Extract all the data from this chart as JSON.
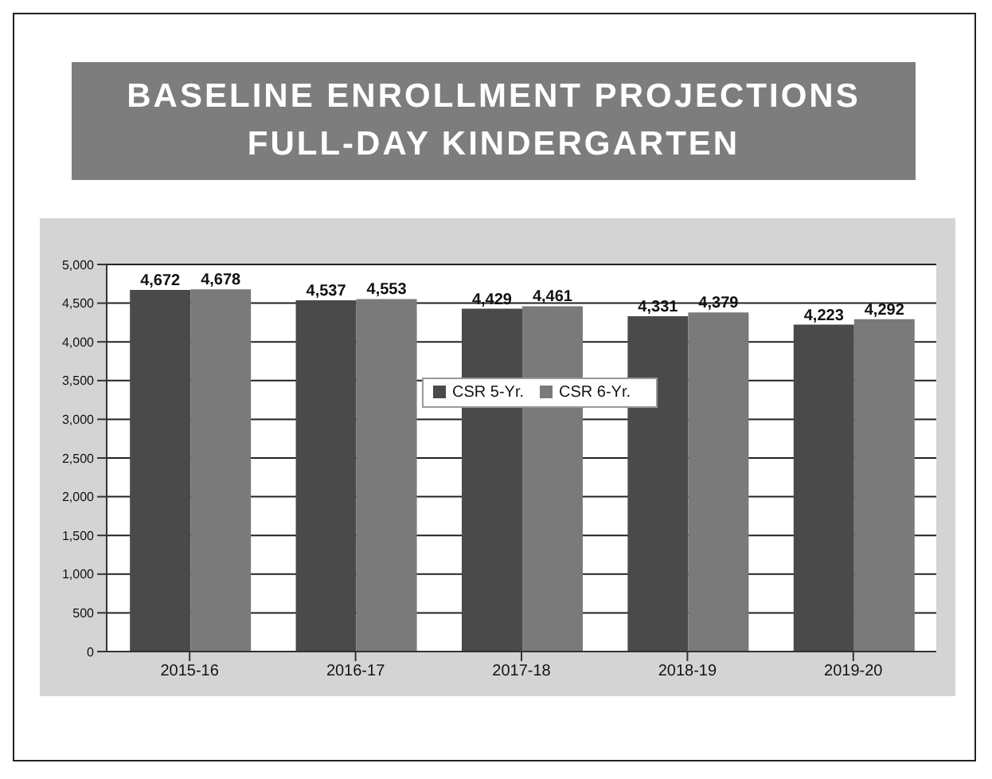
{
  "chart_data": {
    "type": "bar",
    "title": "BASELINE ENROLLMENT PROJECTIONS\nFULL-DAY KINDERGARTEN",
    "categories": [
      "2015-16",
      "2016-17",
      "2017-18",
      "2018-19",
      "2019-20"
    ],
    "series": [
      {
        "name": "CSR 5-Yr.",
        "color": "#4a4a4a",
        "values": [
          4672,
          4537,
          4429,
          4331,
          4223
        ],
        "value_labels": [
          "4,672",
          "4,537",
          "4,429",
          "4,331",
          "4,223"
        ]
      },
      {
        "name": "CSR 6-Yr.",
        "color": "#7a7a7a",
        "values": [
          4678,
          4553,
          4461,
          4379,
          4292
        ],
        "value_labels": [
          "4,678",
          "4,553",
          "4,461",
          "4,379",
          "4,292"
        ]
      }
    ],
    "ylim": [
      0,
      5000
    ],
    "yticks": [
      {
        "value": 0,
        "label": "0"
      },
      {
        "value": 500,
        "label": "500"
      },
      {
        "value": 1000,
        "label": "1,000"
      },
      {
        "value": 1500,
        "label": "1,500"
      },
      {
        "value": 2000,
        "label": "2,000"
      },
      {
        "value": 2500,
        "label": "2,500"
      },
      {
        "value": 3000,
        "label": "3,000"
      },
      {
        "value": 3500,
        "label": "3,500"
      },
      {
        "value": 4000,
        "label": "4,000"
      },
      {
        "value": 4500,
        "label": "4,500"
      },
      {
        "value": 5000,
        "label": "5,000"
      }
    ],
    "grid": "y",
    "legend": "center"
  }
}
